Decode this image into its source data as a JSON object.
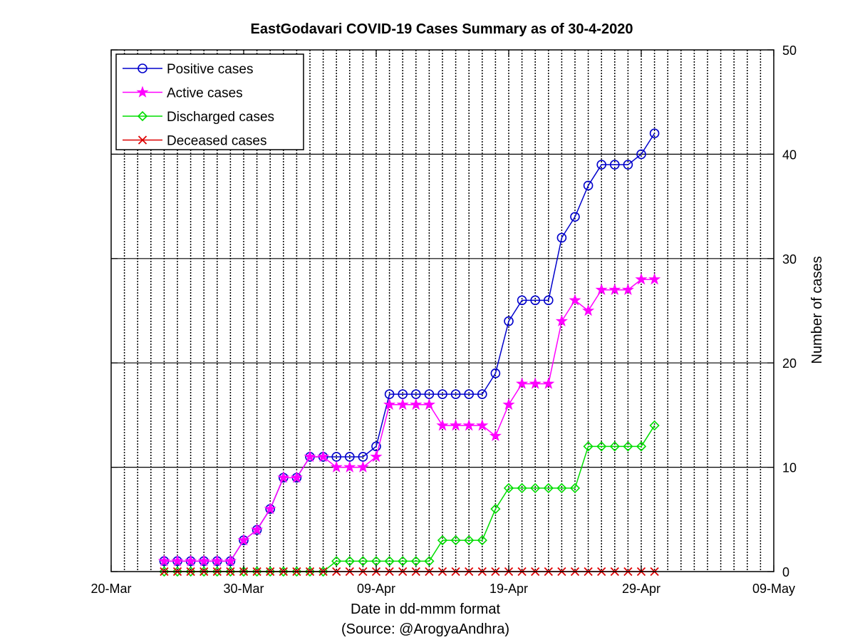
{
  "chart_data": {
    "type": "line",
    "title": "EastGodavari COVID-19 Cases Summary as of 30-4-2020",
    "xlabel": "Date in dd-mmm format",
    "xlabel_source": "(Source: @ArogyaAndhra)",
    "ylabel": "Number of cases",
    "x_range": [
      "20-Mar",
      "09-May"
    ],
    "x_ticks": [
      "20-Mar",
      "30-Mar",
      "09-Apr",
      "19-Apr",
      "29-Apr",
      "09-May"
    ],
    "ylim": [
      0,
      50
    ],
    "y_ticks": [
      "0",
      "10",
      "20",
      "30",
      "40",
      "50"
    ],
    "y_axis_side": "right",
    "grid": {
      "x_minor_daily": true,
      "y_major": true
    },
    "legend_position": "top-left",
    "x": [
      "24-Mar",
      "25-Mar",
      "26-Mar",
      "27-Mar",
      "28-Mar",
      "29-Mar",
      "30-Mar",
      "31-Mar",
      "01-Apr",
      "02-Apr",
      "03-Apr",
      "04-Apr",
      "05-Apr",
      "06-Apr",
      "07-Apr",
      "08-Apr",
      "09-Apr",
      "10-Apr",
      "11-Apr",
      "12-Apr",
      "13-Apr",
      "14-Apr",
      "15-Apr",
      "16-Apr",
      "17-Apr",
      "18-Apr",
      "19-Apr",
      "20-Apr",
      "21-Apr",
      "22-Apr",
      "23-Apr",
      "24-Apr",
      "25-Apr",
      "26-Apr",
      "27-Apr",
      "28-Apr",
      "29-Apr",
      "30-Apr"
    ],
    "series": [
      {
        "name": "Positive cases",
        "color": "#0000cc",
        "marker": "circle",
        "values": [
          1,
          1,
          1,
          1,
          1,
          1,
          3,
          4,
          6,
          9,
          9,
          11,
          11,
          11,
          11,
          11,
          12,
          17,
          17,
          17,
          17,
          17,
          17,
          17,
          17,
          19,
          24,
          26,
          26,
          26,
          32,
          34,
          37,
          39,
          39,
          39,
          40,
          42
        ]
      },
      {
        "name": "Active cases",
        "color": "#ff00ff",
        "marker": "star",
        "values": [
          1,
          1,
          1,
          1,
          1,
          1,
          3,
          4,
          6,
          9,
          9,
          11,
          11,
          10,
          10,
          10,
          11,
          16,
          16,
          16,
          16,
          14,
          14,
          14,
          14,
          13,
          16,
          18,
          18,
          18,
          24,
          26,
          25,
          27,
          27,
          27,
          28,
          28
        ]
      },
      {
        "name": "Discharged cases",
        "color": "#00dd00",
        "marker": "diamond",
        "values": [
          0,
          0,
          0,
          0,
          0,
          0,
          0,
          0,
          0,
          0,
          0,
          0,
          0,
          1,
          1,
          1,
          1,
          1,
          1,
          1,
          1,
          3,
          3,
          3,
          3,
          6,
          8,
          8,
          8,
          8,
          8,
          8,
          12,
          12,
          12,
          12,
          12,
          14
        ]
      },
      {
        "name": "Deceased cases",
        "color": "#dd0000",
        "marker": "x",
        "values": [
          0,
          0,
          0,
          0,
          0,
          0,
          0,
          0,
          0,
          0,
          0,
          0,
          0,
          0,
          0,
          0,
          0,
          0,
          0,
          0,
          0,
          0,
          0,
          0,
          0,
          0,
          0,
          0,
          0,
          0,
          0,
          0,
          0,
          0,
          0,
          0,
          0,
          0
        ]
      }
    ]
  }
}
